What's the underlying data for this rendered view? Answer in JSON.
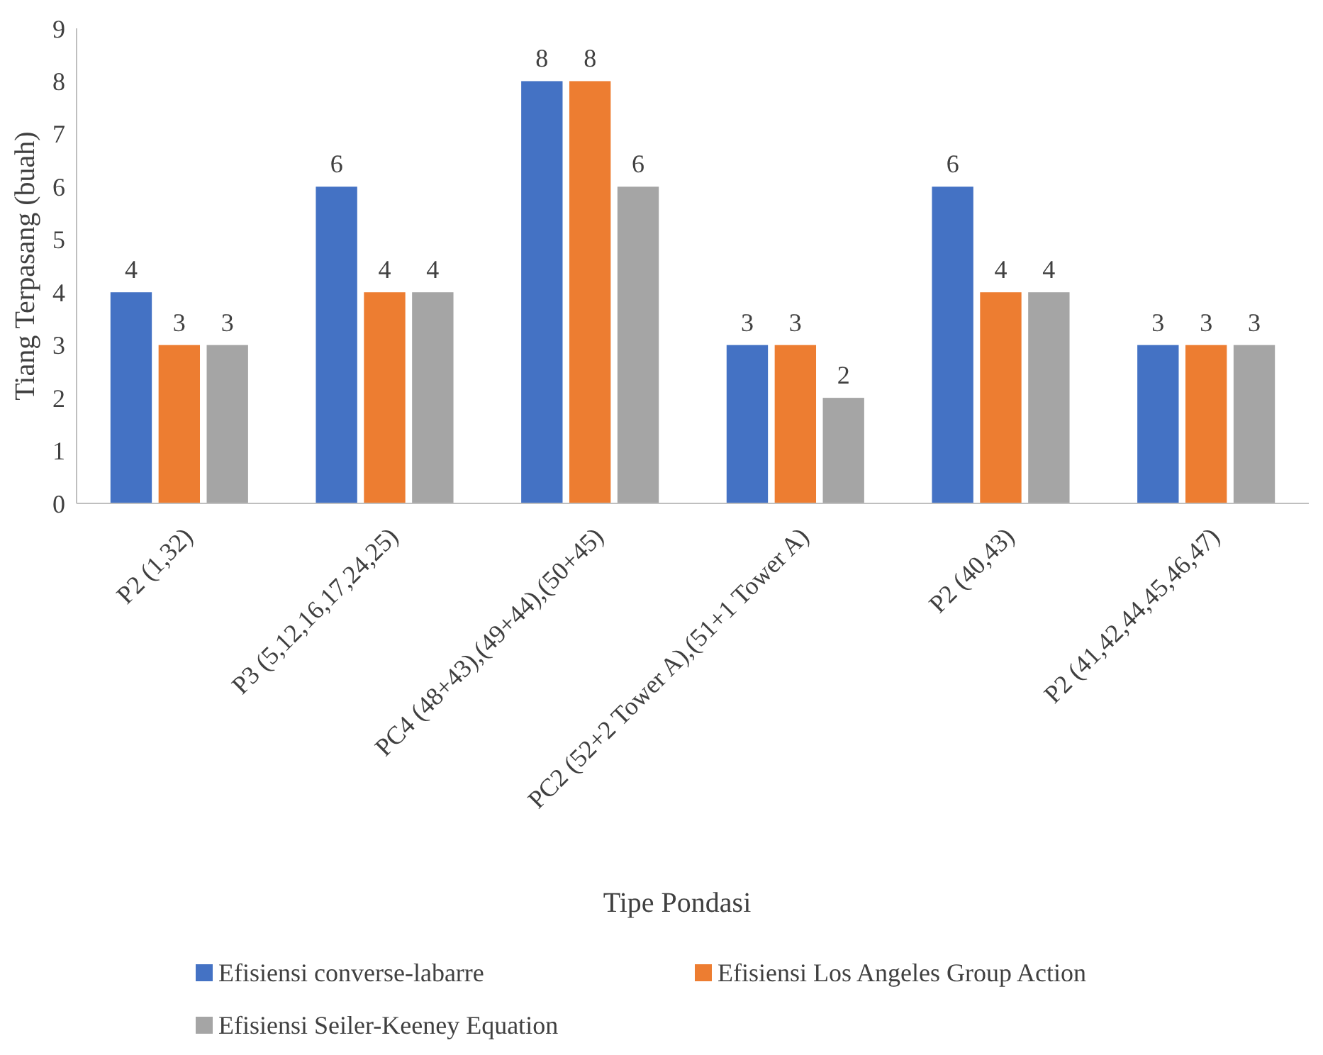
{
  "chart_data": {
    "type": "bar",
    "xlabel": "Tipe Pondasi",
    "ylabel": "Tiang Terpasang (buah)",
    "categories": [
      "P2 (1,32)",
      "P3 (5,12,16,17,24,25)",
      "PC4 (48+43),(49+44),(50+45)",
      "PC2 (52+2 Tower A),(51+1 Tower A)",
      "P2 (40,43)",
      "P2 (41,42,44,45,46,47)"
    ],
    "series": [
      {
        "name": "Efisiensi converse-labarre",
        "color": "#4472c4",
        "values": [
          4,
          6,
          8,
          3,
          6,
          3
        ]
      },
      {
        "name": "Efisiensi Los Angeles Group Action",
        "color": "#ed7d31",
        "values": [
          3,
          4,
          8,
          3,
          4,
          3
        ]
      },
      {
        "name": "Efisiensi Seiler-Keeney Equation",
        "color": "#a5a5a5",
        "values": [
          3,
          4,
          6,
          2,
          4,
          3
        ]
      }
    ],
    "ylim": [
      0,
      9
    ],
    "yticks": [
      0,
      1,
      2,
      3,
      4,
      5,
      6,
      7,
      8,
      9
    ],
    "data_labels": true,
    "legend": "bottom",
    "grid": false
  }
}
